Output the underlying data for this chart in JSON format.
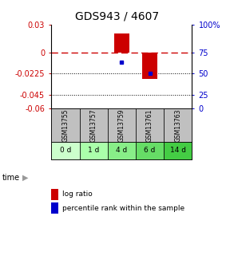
{
  "title": "GDS943 / 4607",
  "samples": [
    "GSM13755",
    "GSM13757",
    "GSM13759",
    "GSM13761",
    "GSM13763"
  ],
  "time_labels": [
    "0 d",
    "1 d",
    "4 d",
    "6 d",
    "14 d"
  ],
  "log_ratio": [
    0.0,
    0.0,
    0.021,
    -0.028,
    0.0
  ],
  "percentile_rank_normalized": [
    null,
    null,
    -0.01,
    -0.0225,
    null
  ],
  "ylim": [
    -0.06,
    0.03
  ],
  "yticks_left": [
    0.03,
    0.0,
    -0.0225,
    -0.045,
    -0.06
  ],
  "ytick_labels_left": [
    "0.03",
    "0",
    "-0.0225",
    "-0.045",
    "-0.06"
  ],
  "yticks_right": [
    0.03,
    0.0,
    -0.0225,
    -0.045,
    -0.06
  ],
  "ytick_labels_right": [
    "100%",
    "75",
    "50",
    "25",
    "0"
  ],
  "hline_y": 0.0,
  "dotted_lines": [
    -0.0225,
    -0.045
  ],
  "bar_color": "#cc0000",
  "blue_color": "#0000cc",
  "bar_width": 0.55,
  "gsm_bg": "#c0c0c0",
  "time_bg_colors": [
    "#ccffcc",
    "#aaffaa",
    "#88ee88",
    "#66dd66",
    "#44cc44"
  ],
  "time_arrow_color": "#999999",
  "legend_bar_label": "log ratio",
  "legend_dot_label": "percentile rank within the sample",
  "title_fontsize": 10,
  "tick_fontsize": 7
}
